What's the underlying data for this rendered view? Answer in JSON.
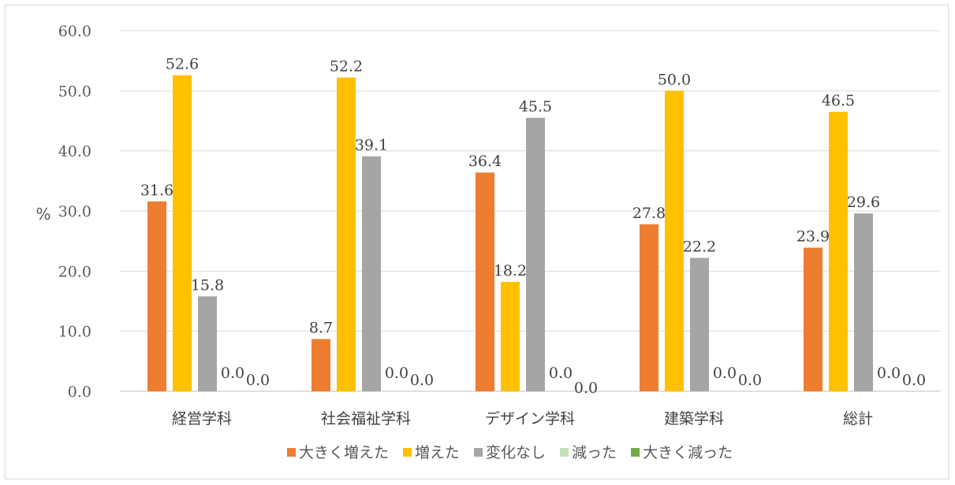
{
  "chart_data": {
    "type": "bar",
    "ylabel": "%",
    "ylim": [
      0,
      60
    ],
    "yticks": [
      "0.0",
      "10.0",
      "20.0",
      "30.0",
      "40.0",
      "50.0",
      "60.0"
    ],
    "grid": true,
    "legend_position": "bottom",
    "categories": [
      "経営学科",
      "社会福祉学科",
      "デザイン学科",
      "建築学科",
      "総計"
    ],
    "series": [
      {
        "name": "大きく増えた",
        "color": "#ED7D31",
        "values": [
          31.6,
          8.7,
          36.4,
          27.8,
          23.9
        ]
      },
      {
        "name": "増えた",
        "color": "#FFC000",
        "values": [
          52.6,
          52.2,
          18.2,
          50.0,
          46.5
        ]
      },
      {
        "name": "変化なし",
        "color": "#A5A5A5",
        "values": [
          15.8,
          39.1,
          45.5,
          22.2,
          29.6
        ]
      },
      {
        "name": "減った",
        "color": "#C5E0B4",
        "values": [
          0.0,
          0.0,
          0.0,
          0.0,
          0.0
        ]
      },
      {
        "name": "大きく減った",
        "color": "#70AD47",
        "values": [
          0.0,
          0.0,
          0.0,
          0.0,
          0.0
        ]
      }
    ]
  }
}
